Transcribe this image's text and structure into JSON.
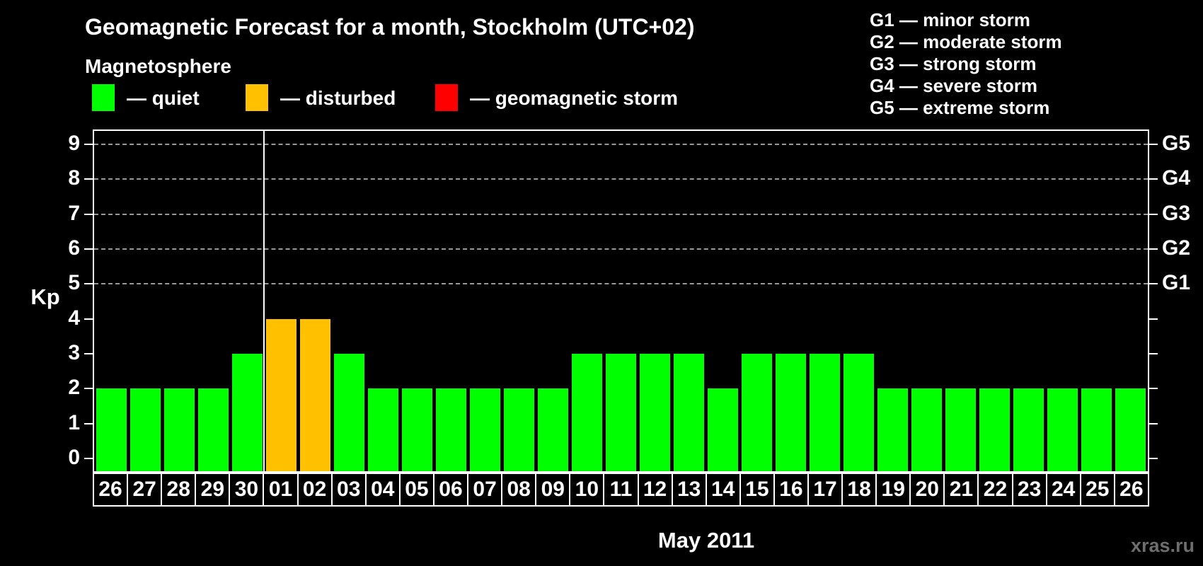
{
  "header": {
    "title": "Geomagnetic Forecast for a month, Stockholm (UTC+02)",
    "subtitle": "Magnetosphere"
  },
  "legend": {
    "items": [
      {
        "key": "quiet",
        "label": "— quiet",
        "color": "#00ff00"
      },
      {
        "key": "disturbed",
        "label": "— disturbed",
        "color": "#ffc000"
      },
      {
        "key": "storm",
        "label": "— geomagnetic storm",
        "color": "#ff0000"
      }
    ]
  },
  "g_legend": {
    "items": [
      {
        "label": "G1 — minor storm"
      },
      {
        "label": "G2 — moderate storm"
      },
      {
        "label": "G3 — strong storm"
      },
      {
        "label": "G4 — severe storm"
      },
      {
        "label": "G5 — extreme storm"
      }
    ]
  },
  "axes": {
    "y_label": "Kp",
    "y_ticks": [
      "0",
      "1",
      "2",
      "3",
      "4",
      "5",
      "6",
      "7",
      "8",
      "9"
    ],
    "right_labels": [
      {
        "level": 5,
        "label": "G1"
      },
      {
        "level": 6,
        "label": "G2"
      },
      {
        "level": 7,
        "label": "G3"
      },
      {
        "level": 8,
        "label": "G4"
      },
      {
        "level": 9,
        "label": "G5"
      }
    ],
    "x_label": "May 2011"
  },
  "watermark": "xras.ru",
  "chart_data": {
    "type": "bar",
    "title": "Geomagnetic Forecast for a month, Stockholm (UTC+02)",
    "xlabel": "May 2011",
    "ylabel": "Kp",
    "ylim": [
      0,
      9
    ],
    "grid_levels": [
      5,
      6,
      7,
      8,
      9
    ],
    "legend_position": "top",
    "categories": [
      "26",
      "27",
      "28",
      "29",
      "30",
      "01",
      "02",
      "03",
      "04",
      "05",
      "06",
      "07",
      "08",
      "09",
      "10",
      "11",
      "12",
      "13",
      "14",
      "15",
      "16",
      "17",
      "18",
      "19",
      "20",
      "21",
      "22",
      "23",
      "24",
      "25",
      "26"
    ],
    "values": [
      2,
      2,
      2,
      2,
      3,
      4,
      4,
      3,
      2,
      2,
      2,
      2,
      2,
      2,
      3,
      3,
      3,
      3,
      2,
      3,
      3,
      3,
      3,
      2,
      2,
      2,
      2,
      2,
      2,
      2,
      2
    ],
    "statuses": [
      "quiet",
      "quiet",
      "quiet",
      "quiet",
      "quiet",
      "disturbed",
      "disturbed",
      "quiet",
      "quiet",
      "quiet",
      "quiet",
      "quiet",
      "quiet",
      "quiet",
      "quiet",
      "quiet",
      "quiet",
      "quiet",
      "quiet",
      "quiet",
      "quiet",
      "quiet",
      "quiet",
      "quiet",
      "quiet",
      "quiet",
      "quiet",
      "quiet",
      "quiet",
      "quiet",
      "quiet"
    ],
    "colors": {
      "quiet": "#00ff00",
      "disturbed": "#ffc000",
      "storm": "#ff0000"
    },
    "month_separator_after_index": 4
  }
}
